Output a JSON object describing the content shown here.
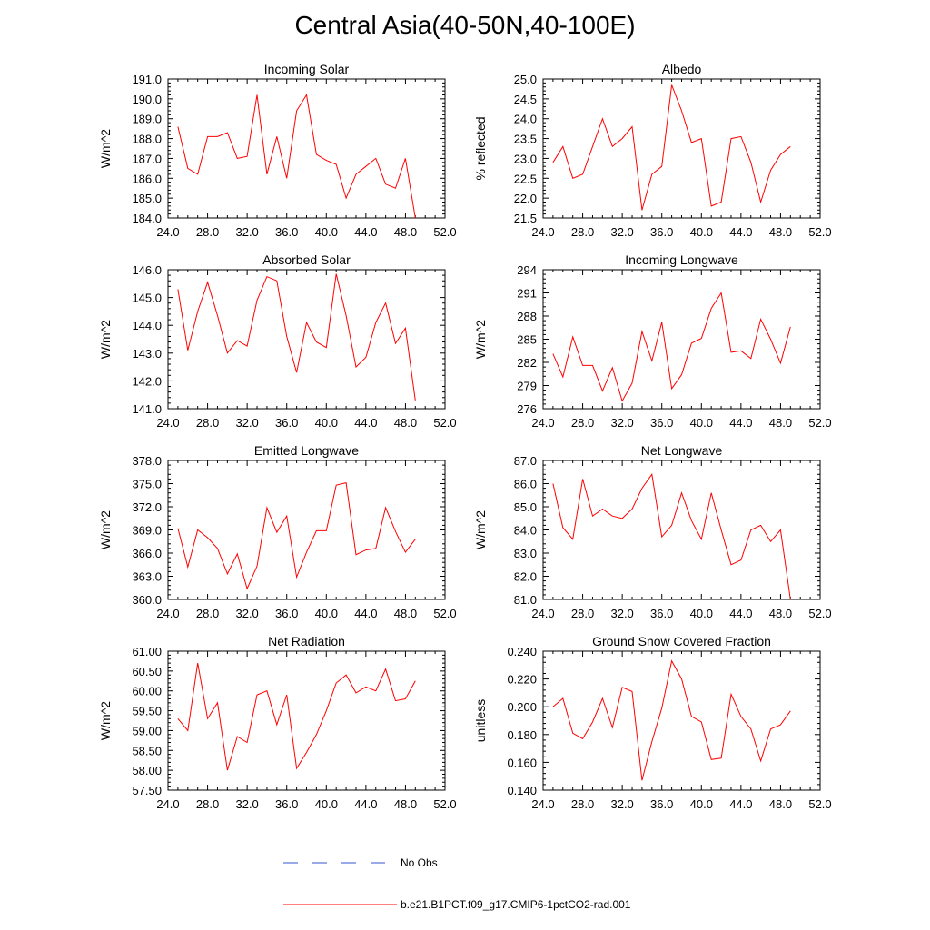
{
  "title": "Central Asia(40-50N,40-100E)",
  "colors": {
    "model_line": "#ff0000",
    "obs_line": "#3355cc",
    "axis": "#000000"
  },
  "legend": {
    "entries": [
      {
        "label": "No Obs",
        "style": "dashed",
        "color": "#3355cc"
      },
      {
        "label": "b.e21.B1PCT.f09_g17.CMIP6-1pctCO2-rad.001",
        "style": "solid",
        "color": "#ff0000"
      }
    ]
  },
  "chart_data": [
    {
      "type": "line",
      "title": "Incoming Solar",
      "ylabel": "W/m^2",
      "xlim": [
        24,
        52
      ],
      "xticks": [
        "24.0",
        "28.0",
        "32.0",
        "36.0",
        "40.0",
        "44.0",
        "48.0",
        "52.0"
      ],
      "ylim": [
        184.0,
        191.0
      ],
      "yticks": [
        "184.0",
        "185.0",
        "186.0",
        "187.0",
        "188.0",
        "189.0",
        "190.0",
        "191.0"
      ],
      "x": [
        25,
        26,
        27,
        28,
        29,
        30,
        31,
        32,
        33,
        34,
        35,
        36,
        37,
        38,
        39,
        40,
        41,
        42,
        43,
        44,
        45,
        46,
        47,
        48,
        49
      ],
      "series": [
        {
          "name": "b.e21.B1PCT.f09_g17.CMIP6-1pctCO2-rad.001",
          "values": [
            188.6,
            186.5,
            186.2,
            188.1,
            188.1,
            188.3,
            187.0,
            187.1,
            190.2,
            186.2,
            188.1,
            186.0,
            189.4,
            190.2,
            187.2,
            186.9,
            186.7,
            185.0,
            186.2,
            186.6,
            187.0,
            185.7,
            185.5,
            187.0,
            184.0
          ]
        }
      ]
    },
    {
      "type": "line",
      "title": "Albedo",
      "ylabel": "% reflected",
      "xlim": [
        24,
        52
      ],
      "xticks": [
        "24.0",
        "28.0",
        "32.0",
        "36.0",
        "40.0",
        "44.0",
        "48.0",
        "52.0"
      ],
      "ylim": [
        21.5,
        25.0
      ],
      "yticks": [
        "21.5",
        "22.0",
        "22.5",
        "23.0",
        "23.5",
        "24.0",
        "24.5",
        "25.0"
      ],
      "x": [
        25,
        26,
        27,
        28,
        29,
        30,
        31,
        32,
        33,
        34,
        35,
        36,
        37,
        38,
        39,
        40,
        41,
        42,
        43,
        44,
        45,
        46,
        47,
        48,
        49
      ],
      "series": [
        {
          "name": "b.e21.B1PCT.f09_g17.CMIP6-1pctCO2-rad.001",
          "values": [
            22.9,
            23.3,
            22.5,
            22.6,
            23.3,
            24.0,
            23.3,
            23.5,
            23.8,
            21.7,
            22.6,
            22.8,
            24.85,
            24.2,
            23.4,
            23.5,
            21.8,
            21.9,
            23.5,
            23.55,
            22.9,
            21.9,
            22.7,
            23.1,
            23.3
          ]
        }
      ]
    },
    {
      "type": "line",
      "title": "Absorbed Solar",
      "ylabel": "W/m^2",
      "xlim": [
        24,
        52
      ],
      "xticks": [
        "24.0",
        "28.0",
        "32.0",
        "36.0",
        "40.0",
        "44.0",
        "48.0",
        "52.0"
      ],
      "ylim": [
        141.0,
        146.0
      ],
      "yticks": [
        "141.0",
        "142.0",
        "143.0",
        "144.0",
        "145.0",
        "146.0"
      ],
      "x": [
        25,
        26,
        27,
        28,
        29,
        30,
        31,
        32,
        33,
        34,
        35,
        36,
        37,
        38,
        39,
        40,
        41,
        42,
        43,
        44,
        45,
        46,
        47,
        48,
        49
      ],
      "series": [
        {
          "name": "b.e21.B1PCT.f09_g17.CMIP6-1pctCO2-rad.001",
          "values": [
            145.3,
            143.1,
            144.5,
            145.55,
            144.35,
            143.0,
            143.45,
            143.25,
            144.9,
            145.75,
            145.6,
            143.6,
            142.3,
            144.1,
            143.4,
            143.2,
            145.85,
            144.35,
            142.5,
            142.85,
            144.1,
            144.8,
            143.35,
            143.9,
            141.3
          ]
        }
      ]
    },
    {
      "type": "line",
      "title": "Incoming Longwave",
      "ylabel": "W/m^2",
      "xlim": [
        24,
        52
      ],
      "xticks": [
        "24.0",
        "28.0",
        "32.0",
        "36.0",
        "40.0",
        "44.0",
        "48.0",
        "52.0"
      ],
      "ylim": [
        276,
        294
      ],
      "yticks": [
        "276",
        "279",
        "282",
        "285",
        "288",
        "291",
        "294"
      ],
      "x": [
        25,
        26,
        27,
        28,
        29,
        30,
        31,
        32,
        33,
        34,
        35,
        36,
        37,
        38,
        39,
        40,
        41,
        42,
        43,
        44,
        45,
        46,
        47,
        48,
        49
      ],
      "series": [
        {
          "name": "b.e21.B1PCT.f09_g17.CMIP6-1pctCO2-rad.001",
          "values": [
            283.1,
            280.1,
            285.3,
            281.6,
            281.6,
            278.3,
            281.3,
            277.0,
            279.3,
            286.0,
            282.2,
            287.2,
            278.6,
            280.4,
            284.5,
            285.1,
            289.0,
            291.0,
            283.3,
            283.5,
            282.5,
            287.6,
            285.0,
            281.9,
            286.6
          ]
        }
      ]
    },
    {
      "type": "line",
      "title": "Emitted Longwave",
      "ylabel": "W/m^2",
      "xlim": [
        24,
        52
      ],
      "xticks": [
        "24.0",
        "28.0",
        "32.0",
        "36.0",
        "40.0",
        "44.0",
        "48.0",
        "52.0"
      ],
      "ylim": [
        360.0,
        378.0
      ],
      "yticks": [
        "360.0",
        "363.0",
        "366.0",
        "369.0",
        "372.0",
        "375.0",
        "378.0"
      ],
      "x": [
        25,
        26,
        27,
        28,
        29,
        30,
        31,
        32,
        33,
        34,
        35,
        36,
        37,
        38,
        39,
        40,
        41,
        42,
        43,
        44,
        45,
        46,
        47,
        48,
        49
      ],
      "series": [
        {
          "name": "b.e21.B1PCT.f09_g17.CMIP6-1pctCO2-rad.001",
          "values": [
            369.2,
            364.2,
            369.0,
            368.0,
            366.6,
            363.3,
            365.9,
            361.4,
            364.3,
            371.9,
            368.7,
            370.8,
            362.9,
            366.1,
            368.9,
            368.9,
            374.8,
            375.1,
            365.8,
            366.4,
            366.6,
            371.9,
            368.8,
            366.1,
            367.8
          ]
        }
      ]
    },
    {
      "type": "line",
      "title": "Net Longwave",
      "ylabel": "W/m^2",
      "xlim": [
        24,
        52
      ],
      "xticks": [
        "24.0",
        "28.0",
        "32.0",
        "36.0",
        "40.0",
        "44.0",
        "48.0",
        "52.0"
      ],
      "ylim": [
        81.0,
        87.0
      ],
      "yticks": [
        "81.0",
        "82.0",
        "83.0",
        "84.0",
        "85.0",
        "86.0",
        "87.0"
      ],
      "x": [
        25,
        26,
        27,
        28,
        29,
        30,
        31,
        32,
        33,
        34,
        35,
        36,
        37,
        38,
        39,
        40,
        41,
        42,
        43,
        44,
        45,
        46,
        47,
        48,
        49
      ],
      "series": [
        {
          "name": "b.e21.B1PCT.f09_g17.CMIP6-1pctCO2-rad.001",
          "values": [
            86.0,
            84.1,
            83.6,
            86.2,
            84.6,
            84.9,
            84.6,
            84.5,
            84.9,
            85.8,
            86.4,
            83.7,
            84.2,
            85.6,
            84.4,
            83.6,
            85.6,
            84.0,
            82.5,
            82.7,
            84.0,
            84.2,
            83.5,
            84.0,
            81.0
          ]
        }
      ]
    },
    {
      "type": "line",
      "title": "Net Radiation",
      "ylabel": "W/m^2",
      "xlim": [
        24,
        52
      ],
      "xticks": [
        "24.0",
        "28.0",
        "32.0",
        "36.0",
        "40.0",
        "44.0",
        "48.0",
        "52.0"
      ],
      "ylim": [
        57.5,
        61.0
      ],
      "yticks": [
        "57.50",
        "58.00",
        "58.50",
        "59.00",
        "59.50",
        "60.00",
        "60.50",
        "61.00"
      ],
      "x": [
        25,
        26,
        27,
        28,
        29,
        30,
        31,
        32,
        33,
        34,
        35,
        36,
        37,
        38,
        39,
        40,
        41,
        42,
        43,
        44,
        45,
        46,
        47,
        48,
        49
      ],
      "series": [
        {
          "name": "b.e21.B1PCT.f09_g17.CMIP6-1pctCO2-rad.001",
          "values": [
            59.3,
            59.0,
            60.7,
            59.3,
            59.7,
            58.0,
            58.85,
            58.7,
            59.9,
            60.0,
            59.15,
            59.9,
            58.05,
            58.45,
            58.9,
            59.5,
            60.2,
            60.4,
            59.95,
            60.1,
            60.0,
            60.55,
            59.75,
            59.8,
            60.25
          ]
        }
      ]
    },
    {
      "type": "line",
      "title": "Ground Snow Covered Fraction",
      "ylabel": "unitless",
      "xlim": [
        24,
        52
      ],
      "xticks": [
        "24.0",
        "28.0",
        "32.0",
        "36.0",
        "40.0",
        "44.0",
        "48.0",
        "52.0"
      ],
      "ylim": [
        0.14,
        0.24
      ],
      "yticks": [
        "0.140",
        "0.160",
        "0.180",
        "0.200",
        "0.220",
        "0.240"
      ],
      "x": [
        25,
        26,
        27,
        28,
        29,
        30,
        31,
        32,
        33,
        34,
        35,
        36,
        37,
        38,
        39,
        40,
        41,
        42,
        43,
        44,
        45,
        46,
        47,
        48,
        49
      ],
      "series": [
        {
          "name": "b.e21.B1PCT.f09_g17.CMIP6-1pctCO2-rad.001",
          "values": [
            0.2,
            0.206,
            0.181,
            0.177,
            0.189,
            0.206,
            0.185,
            0.214,
            0.211,
            0.147,
            0.175,
            0.199,
            0.233,
            0.22,
            0.193,
            0.189,
            0.162,
            0.163,
            0.209,
            0.193,
            0.184,
            0.161,
            0.184,
            0.187,
            0.197
          ]
        }
      ]
    }
  ]
}
